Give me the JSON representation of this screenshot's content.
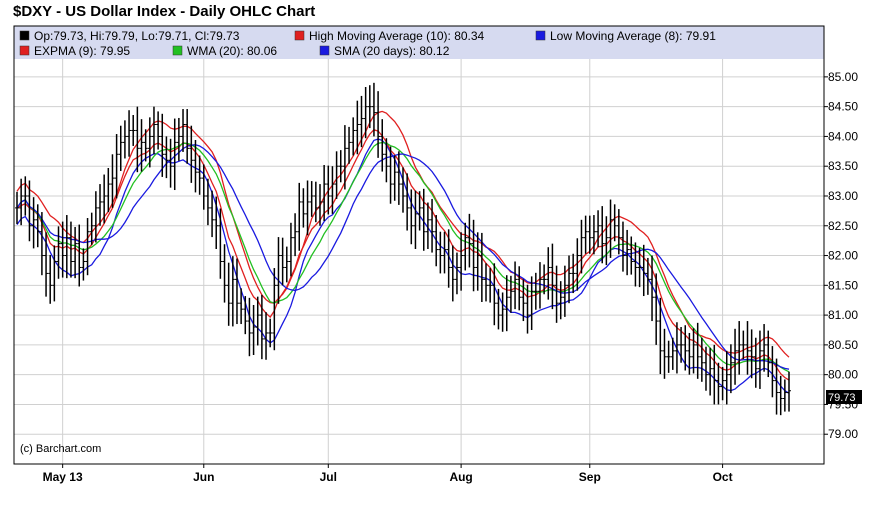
{
  "title": "$DXY - US Dollar Index - Daily OHLC Chart",
  "legend": [
    {
      "label": "Op:79.73, Hi:79.79, Lo:79.71, Cl:79.73",
      "color": "#000000"
    },
    {
      "label": "High Moving Average (10): 80.34",
      "color": "#e02020"
    },
    {
      "label": "Low Moving Average (8): 79.91",
      "color": "#1a1ae0"
    },
    {
      "label": "EXPMA (9): 79.95",
      "color": "#e02020"
    },
    {
      "label": "WMA (20): 80.06",
      "color": "#22c022"
    },
    {
      "label": "SMA (20 days): 80.12",
      "color": "#1a1ae0"
    }
  ],
  "credit": "(c) Barchart.com",
  "last_price_label": "79.73",
  "chart_data": {
    "type": "ohlc",
    "title": "$DXY - US Dollar Index - Daily OHLC Chart",
    "ylim": [
      78.5,
      85.3
    ],
    "y_ticks": [
      "85.00",
      "84.50",
      "84.00",
      "83.50",
      "83.00",
      "82.50",
      "82.00",
      "81.50",
      "81.00",
      "80.50",
      "80.00",
      "79.50",
      "79.00"
    ],
    "x_ticks": [
      "May 13",
      "Jun",
      "Jul",
      "Aug",
      "Sep",
      "Oct"
    ],
    "x_tick_index": [
      11,
      45,
      75,
      107,
      138,
      170
    ],
    "grid": true,
    "close": [
      82.8,
      83.0,
      83.0,
      82.5,
      82.6,
      82.4,
      82.0,
      81.7,
      81.5,
      81.9,
      82.2,
      82.0,
      82.3,
      81.9,
      82.2,
      81.8,
      81.9,
      82.4,
      82.5,
      82.8,
      82.9,
      83.0,
      83.2,
      83.3,
      83.7,
      83.9,
      84.0,
      84.1,
      84.1,
      83.8,
      83.9,
      83.8,
      84.0,
      84.2,
      84.0,
      83.7,
      83.6,
      83.5,
      83.9,
      84.0,
      84.2,
      83.8,
      83.6,
      83.4,
      83.3,
      83.0,
      82.8,
      82.6,
      82.5,
      81.9,
      81.5,
      81.2,
      81.6,
      81.2,
      81.1,
      80.9,
      80.7,
      80.8,
      81.0,
      80.6,
      80.7,
      80.7,
      81.5,
      82.0,
      81.8,
      81.9,
      82.3,
      82.4,
      82.9,
      82.7,
      82.9,
      83.0,
      82.8,
      82.9,
      83.2,
      83.0,
      83.2,
      83.5,
      83.5,
      83.8,
      83.9,
      84.1,
      84.2,
      84.3,
      84.5,
      84.5,
      84.4,
      84.0,
      83.7,
      83.5,
      83.2,
      83.4,
      83.2,
      83.0,
      82.8,
      82.5,
      82.7,
      82.8,
      82.4,
      82.6,
      82.4,
      82.1,
      82.0,
      82.1,
      81.8,
      81.6,
      81.8,
      82.0,
      82.3,
      82.2,
      81.8,
      82.0,
      81.6,
      81.5,
      81.5,
      81.2,
      81.0,
      81.1,
      81.3,
      81.4,
      81.6,
      81.3,
      81.2,
      81.0,
      81.4,
      81.4,
      81.6,
      81.6,
      81.8,
      81.5,
      81.2,
      81.3,
      81.5,
      81.7,
      81.7,
      82.0,
      82.3,
      82.4,
      82.3,
      82.4,
      82.5,
      82.2,
      82.3,
      82.6,
      82.5,
      82.3,
      82.0,
      82.1,
      81.9,
      81.8,
      81.8,
      81.7,
      81.6,
      81.3,
      80.9,
      80.4,
      80.3,
      80.3,
      80.4,
      80.5,
      80.5,
      80.4,
      80.3,
      80.5,
      80.3,
      80.2,
      80.0,
      80.1,
      79.9,
      79.8,
      79.9,
      80.0,
      80.2,
      80.4,
      80.5,
      80.5,
      80.4,
      80.3,
      80.1,
      80.4,
      80.5,
      80.2,
      79.9,
      79.7,
      79.6,
      79.7,
      79.73
    ],
    "spread": [
      0.27,
      0.29,
      0.33,
      0.26,
      0.38,
      0.26,
      0.33,
      0.39,
      0.31,
      0.27,
      0.29,
      0.37,
      0.38,
      0.27,
      0.28,
      0.32,
      0.22,
      0.23,
      0.22,
      0.28,
      0.3,
      0.36,
      0.27,
      0.4,
      0.34,
      0.28,
      0.27,
      0.34,
      0.26,
      0.4,
      0.39,
      0.22,
      0.32,
      0.3,
      0.22,
      0.38,
      0.3,
      0.36,
      0.4,
      0.31,
      0.26,
      0.26,
      0.38,
      0.34,
      0.28,
      0.23,
      0.29,
      0.29,
      0.39,
      0.29,
      0.29,
      0.38,
      0.39,
      0.35,
      0.25,
      0.22,
      0.39,
      0.37,
      0.31,
      0.34,
      0.35,
      0.24,
      0.29,
      0.31,
      0.3,
      0.25,
      0.25,
      0.31,
      0.32,
      0.23,
      0.36,
      0.25,
      0.24,
      0.3,
      0.32,
      0.31,
      0.3,
      0.25,
      0.27,
      0.39,
      0.26,
      0.22,
      0.4,
      0.38,
      0.33,
      0.36,
      0.4,
      0.36,
      0.29,
      0.27,
      0.33,
      0.28,
      0.35,
      0.28,
      0.38,
      0.31,
      0.39,
      0.28,
      0.32,
      0.29,
      0.35,
      0.28,
      0.3,
      0.3,
      0.34,
      0.37,
      0.25,
      0.39,
      0.25,
      0.4,
      0.4,
      0.39,
      0.38,
      0.27,
      0.29,
      0.37,
      0.24,
      0.28,
      0.37,
      0.26,
      0.3,
      0.22,
      0.3,
      0.31,
      0.25,
      0.31,
      0.29,
      0.25,
      0.34,
      0.4,
      0.33,
      0.27,
      0.33,
      0.3,
      0.33,
      0.29,
      0.3,
      0.27,
      0.27,
      0.28,
      0.26,
      0.33,
      0.36,
      0.34,
      0.26,
      0.28,
      0.27,
      0.33,
      0.22,
      0.32,
      0.33,
      0.38,
      0.26,
      0.4,
      0.4,
      0.39,
      0.37,
      0.27,
      0.22,
      0.38,
      0.3,
      0.33,
      0.3,
      0.28,
      0.37,
      0.32,
      0.27,
      0.35,
      0.4,
      0.3,
      0.23,
      0.4,
      0.31,
      0.37,
      0.4,
      0.24,
      0.4,
      0.36,
      0.32,
      0.34,
      0.35,
      0.24,
      0.28,
      0.37,
      0.28,
      0.22,
      0.32,
      0.34,
      0.04
    ],
    "series": [
      {
        "name": "High Moving Average (10)",
        "period": 10,
        "kind": "sma",
        "offset": 0.28,
        "color": "#e02020",
        "last": 80.34
      },
      {
        "name": "Low Moving Average (8)",
        "period": 8,
        "kind": "sma",
        "offset": -0.28,
        "color": "#1a1ae0",
        "last": 79.91
      },
      {
        "name": "EXPMA (9)",
        "period": 9,
        "kind": "ema",
        "offset": 0,
        "color": "#e02020",
        "last": 79.95
      },
      {
        "name": "WMA (20)",
        "period": 20,
        "kind": "wma",
        "offset": 0,
        "color": "#22c022",
        "last": 80.06
      },
      {
        "name": "SMA (20 days)",
        "period": 20,
        "kind": "sma",
        "offset": 0,
        "color": "#1a1ae0",
        "last": 80.12
      }
    ]
  }
}
